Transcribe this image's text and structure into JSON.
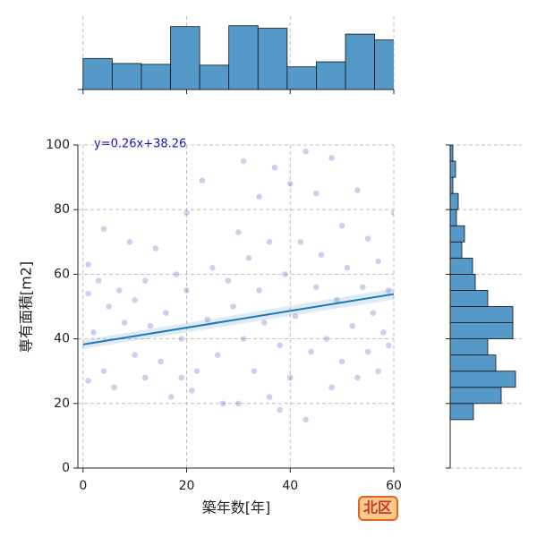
{
  "chart_data": {
    "type": "scatter",
    "x_label": "築年数[年]",
    "y_label": "専有面積[m2]",
    "annotation": "y=0.26x+38.26",
    "badge": "北区",
    "xlim": [
      -1,
      60
    ],
    "ylim": [
      0,
      100
    ],
    "xticks": [
      0,
      20,
      40,
      60
    ],
    "yticks": [
      0,
      20,
      40,
      60,
      80,
      100
    ],
    "grid": true,
    "point_color": "#3a3ab8",
    "line_color": "#1f77b4",
    "hist_color": "#5499c7",
    "x": [
      1,
      1,
      1,
      2,
      3,
      4,
      4,
      5,
      6,
      7,
      8,
      9,
      10,
      10,
      12,
      12,
      13,
      14,
      15,
      16,
      17,
      18,
      19,
      19,
      20,
      20,
      21,
      22,
      23,
      24,
      25,
      26,
      27,
      28,
      29,
      30,
      30,
      31,
      31,
      32,
      33,
      34,
      34,
      35,
      36,
      36,
      37,
      38,
      38,
      39,
      40,
      40,
      41,
      42,
      43,
      43,
      44,
      45,
      45,
      46,
      47,
      48,
      48,
      49,
      50,
      50,
      51,
      52,
      53,
      53,
      54,
      55,
      55,
      56,
      57,
      57,
      58,
      59,
      59,
      60
    ],
    "y": [
      63,
      54,
      27,
      42,
      58,
      74,
      30,
      50,
      25,
      55,
      45,
      70,
      35,
      52,
      58,
      28,
      44,
      68,
      33,
      48,
      22,
      60,
      40,
      28,
      79,
      55,
      24,
      30,
      89,
      46,
      62,
      35,
      20,
      58,
      50,
      20,
      73,
      95,
      40,
      65,
      30,
      84,
      55,
      45,
      22,
      70,
      93,
      38,
      18,
      60,
      88,
      28,
      47,
      70,
      98,
      15,
      36,
      85,
      56,
      66,
      40,
      96,
      25,
      52,
      75,
      33,
      62,
      44,
      86,
      28,
      56,
      71,
      36,
      48,
      64,
      30,
      42,
      55,
      38,
      79
    ],
    "trend_line": {
      "x": [
        0,
        60
      ],
      "y": [
        38.26,
        53.86
      ]
    },
    "x_hist": {
      "bins": [
        0,
        5.63,
        11.26,
        16.89,
        22.52,
        28.15,
        33.78,
        39.41,
        45.04,
        50.67,
        56.3,
        61.93
      ],
      "counts": [
        37,
        31,
        30,
        75,
        29,
        76,
        73,
        27,
        33,
        66,
        59
      ],
      "lim": [
        0,
        80
      ]
    },
    "y_hist": {
      "bins": [
        15,
        20,
        25,
        30,
        35,
        40,
        45,
        50,
        55,
        60,
        65,
        70,
        75,
        80,
        85,
        90,
        95,
        100
      ],
      "counts": [
        26,
        57,
        73,
        51,
        42,
        70,
        70,
        42,
        28,
        25,
        13,
        16,
        7,
        9,
        3,
        6,
        3
      ],
      "lim": [
        0,
        80
      ]
    }
  }
}
